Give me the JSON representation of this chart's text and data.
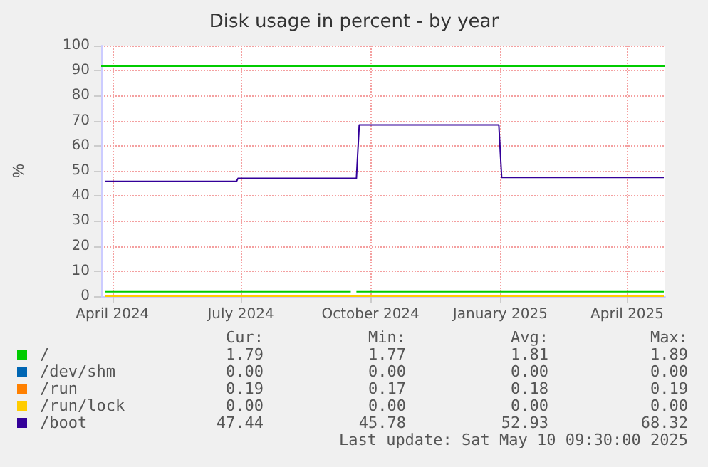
{
  "chart_data": {
    "type": "line",
    "title": "Disk usage in percent - by year",
    "ylabel": "%",
    "xlim": [
      "2024-03-24",
      "2025-04-28"
    ],
    "xticks": [
      {
        "value": "2024-04-01",
        "label": "April 2024"
      },
      {
        "value": "2024-07-01",
        "label": "July 2024"
      },
      {
        "value": "2024-10-01",
        "label": "October 2024"
      },
      {
        "value": "2025-01-01",
        "label": "January 2025"
      },
      {
        "value": "2025-04-01",
        "label": "April 2025"
      }
    ],
    "ylim": [
      0,
      100
    ],
    "yticks": [
      0,
      10,
      20,
      30,
      40,
      50,
      60,
      70,
      80,
      90,
      100
    ],
    "grid": true,
    "legend": "bottom left",
    "marker": "none",
    "line_style": "solid",
    "ref_lines": [
      {
        "axis": "y",
        "value": 92,
        "color": "#00cc00"
      }
    ],
    "series": [
      {
        "name": "/",
        "color": "#00cc00",
        "x": [
          "2024-03-27",
          "2024-09-17",
          "2024-09-19",
          "2024-09-21",
          "2025-04-27"
        ],
        "values": [
          1.8,
          1.8,
          null,
          1.8,
          1.8
        ]
      },
      {
        "name": "/dev/shm",
        "color": "#0066b3"
      },
      {
        "name": "/run",
        "color": "#ff8000",
        "x": [
          "2024-03-27",
          "2025-04-27"
        ],
        "values": [
          0.2,
          0.2
        ]
      },
      {
        "name": "/run/lock",
        "color": "#ffcc00",
        "x": [
          "2024-03-27",
          "2025-04-27"
        ],
        "values": [
          0,
          0
        ]
      },
      {
        "name": "/boot",
        "color": "#330099",
        "x": [
          "2024-03-27",
          "2024-06-28",
          "2024-06-29",
          "2024-09-21",
          "2024-09-23",
          "2024-12-31",
          "2025-01-02",
          "2025-04-27"
        ],
        "values": [
          45.8,
          45.8,
          47,
          47,
          68.3,
          68.3,
          47.4,
          47.4
        ]
      }
    ],
    "annotations": [
      "Cur:",
      "Min:",
      "Avg:",
      "Max:",
      "1.79",
      "1.77",
      "1.81",
      "1.89",
      "0.00",
      "0.00",
      "0.00",
      "0.00",
      "0.19",
      "0.17",
      "0.18",
      "0.19",
      "0.00",
      "0.00",
      "0.00",
      "0.00",
      "47.44",
      "45.78",
      "52.93",
      "68.32",
      "Last update: Sat May 10 09:30:00 2025"
    ]
  }
}
